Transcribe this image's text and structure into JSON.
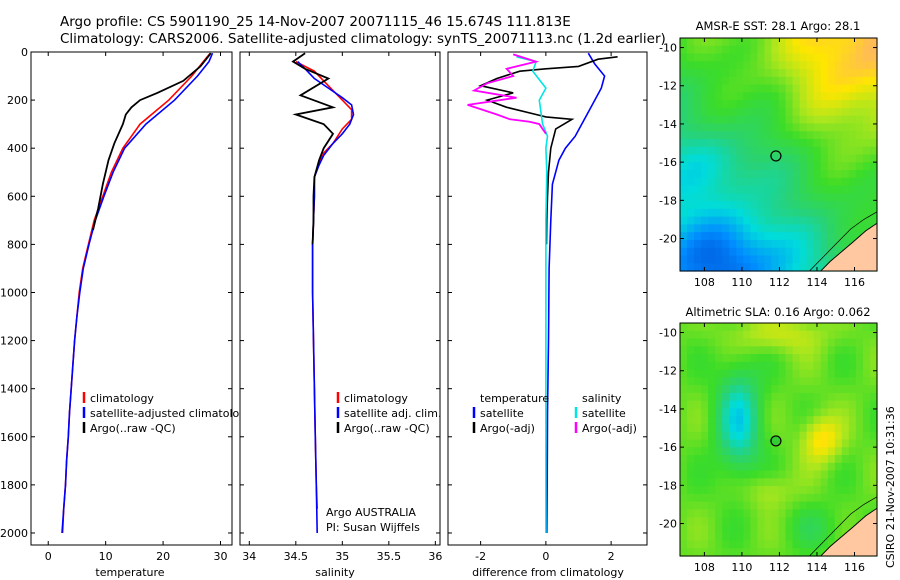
{
  "header": {
    "title_line1": "Argo profile: CS 5901190_25 14-Nov-2007 20071115_46 15.674S 111.813E",
    "title_line2": "Climatology: CARS2006. Satellite-adjusted climatology: synTS_20071113.nc (1.2d earlier)"
  },
  "credit": "CSIRO 21-Nov-2007 10:31:36",
  "colors": {
    "climatology": "#ff0000",
    "satellite": "#0000ff",
    "argo": "#000000",
    "salinity_satellite": "#00e5e5",
    "salinity_argo": "#ff00ff"
  },
  "chart_data": [
    {
      "id": "temperature",
      "type": "line",
      "xlabel": "temperature",
      "ylabel": "",
      "xlim": [
        -3,
        32
      ],
      "ylim": [
        2050,
        0
      ],
      "y_reversed": true,
      "xticks": [
        0,
        10,
        20,
        30
      ],
      "yticks": [
        0,
        200,
        400,
        600,
        800,
        1000,
        1200,
        1400,
        1600,
        1800,
        2000
      ],
      "legend": [
        {
          "label": "climatology",
          "color": "#ff0000"
        },
        {
          "label": "satellite-adjusted climatology",
          "color": "#0000ff"
        },
        {
          "label": "Argo(..raw -QC)",
          "color": "#000000"
        }
      ],
      "series": [
        {
          "name": "climatology",
          "color": "#ff0000",
          "points": [
            [
              28.2,
              5
            ],
            [
              27,
              40
            ],
            [
              25,
              100
            ],
            [
              21,
              200
            ],
            [
              16,
              300
            ],
            [
              13,
              400
            ],
            [
              11,
              500
            ],
            [
              9.5,
              600
            ],
            [
              8,
              700
            ],
            [
              7,
              800
            ],
            [
              6,
              900
            ],
            [
              5.4,
              1000
            ],
            [
              5,
              1100
            ],
            [
              4.6,
              1200
            ],
            [
              4.3,
              1300
            ],
            [
              4,
              1400
            ],
            [
              3.7,
              1500
            ],
            [
              3.5,
              1600
            ],
            [
              3.2,
              1700
            ],
            [
              3,
              1800
            ],
            [
              2.7,
              1900
            ],
            [
              2.5,
              2000
            ]
          ]
        },
        {
          "name": "satellite-adjusted climatology",
          "color": "#0000ff",
          "points": [
            [
              28.6,
              5
            ],
            [
              28,
              40
            ],
            [
              26,
              100
            ],
            [
              22,
              200
            ],
            [
              17,
              300
            ],
            [
              13.3,
              400
            ],
            [
              11.3,
              500
            ],
            [
              9.7,
              600
            ],
            [
              8.2,
              700
            ],
            [
              7.1,
              800
            ],
            [
              6.1,
              900
            ],
            [
              5.5,
              1000
            ],
            [
              5,
              1100
            ],
            [
              4.6,
              1200
            ],
            [
              4.3,
              1300
            ],
            [
              4,
              1400
            ],
            [
              3.7,
              1500
            ],
            [
              3.5,
              1600
            ],
            [
              3.2,
              1700
            ],
            [
              3,
              1800
            ],
            [
              2.7,
              1900
            ],
            [
              2.4,
              2000
            ]
          ]
        },
        {
          "name": "Argo(..raw -QC)",
          "color": "#000000",
          "points": [
            [
              28.3,
              5
            ],
            [
              28,
              15
            ],
            [
              26.5,
              60
            ],
            [
              23.5,
              120
            ],
            [
              19,
              170
            ],
            [
              16,
              200
            ],
            [
              14.5,
              230
            ],
            [
              13.5,
              260
            ],
            [
              13,
              300
            ],
            [
              11.5,
              380
            ],
            [
              10.5,
              450
            ],
            [
              9.5,
              550
            ],
            [
              8.7,
              650
            ],
            [
              7.8,
              740
            ]
          ]
        }
      ]
    },
    {
      "id": "salinity",
      "type": "line",
      "xlabel": "salinity",
      "ylabel": "",
      "xlim": [
        33.9,
        36.05
      ],
      "ylim": [
        2050,
        0
      ],
      "y_reversed": true,
      "xticks": [
        34,
        34.5,
        35,
        35.5,
        36
      ],
      "legend": [
        {
          "label": "climatology",
          "color": "#ff0000"
        },
        {
          "label": "satellite adj. clim.",
          "color": "#0000ff"
        },
        {
          "label": "Argo(..raw -QC)",
          "color": "#000000"
        }
      ],
      "annotations": [
        "Argo AUSTRALIA",
        "PI: Susan Wijffels"
      ],
      "series": [
        {
          "name": "climatology",
          "color": "#ff0000",
          "points": [
            [
              34.5,
              40
            ],
            [
              34.6,
              60
            ],
            [
              34.7,
              80
            ],
            [
              34.8,
              120
            ],
            [
              34.9,
              160
            ],
            [
              35,
              200
            ],
            [
              35.1,
              240
            ],
            [
              35.1,
              280
            ],
            [
              35,
              320
            ],
            [
              34.9,
              380
            ],
            [
              34.8,
              420
            ],
            [
              34.75,
              460
            ],
            [
              34.7,
              520
            ],
            [
              34.7,
              600
            ],
            [
              34.69,
              700
            ],
            [
              34.68,
              800
            ],
            [
              34.68,
              1000
            ],
            [
              34.69,
              1200
            ],
            [
              34.7,
              1400
            ],
            [
              34.71,
              1600
            ],
            [
              34.72,
              1800
            ],
            [
              34.73,
              1900
            ]
          ]
        },
        {
          "name": "satellite adj. clim.",
          "color": "#0000ff",
          "points": [
            [
              34.52,
              40
            ],
            [
              34.6,
              70
            ],
            [
              34.7,
              110
            ],
            [
              34.85,
              150
            ],
            [
              35,
              190
            ],
            [
              35.1,
              220
            ],
            [
              35.12,
              260
            ],
            [
              35.08,
              300
            ],
            [
              35,
              340
            ],
            [
              34.9,
              380
            ],
            [
              34.8,
              430
            ],
            [
              34.75,
              470
            ],
            [
              34.7,
              520
            ],
            [
              34.7,
              600
            ],
            [
              34.69,
              700
            ],
            [
              34.68,
              800
            ],
            [
              34.68,
              1000
            ],
            [
              34.69,
              1200
            ],
            [
              34.7,
              1400
            ],
            [
              34.71,
              1600
            ],
            [
              34.72,
              1800
            ],
            [
              34.73,
              2000
            ]
          ]
        },
        {
          "name": "Argo(..raw -QC)",
          "color": "#000000",
          "points": [
            [
              34.6,
              5
            ],
            [
              34.47,
              40
            ],
            [
              34.6,
              70
            ],
            [
              34.85,
              110
            ],
            [
              34.55,
              180
            ],
            [
              34.9,
              230
            ],
            [
              34.5,
              260
            ],
            [
              34.8,
              300
            ],
            [
              34.9,
              340
            ],
            [
              34.8,
              400
            ],
            [
              34.75,
              450
            ],
            [
              34.7,
              520
            ],
            [
              34.69,
              600
            ],
            [
              34.69,
              700
            ],
            [
              34.68,
              800
            ]
          ]
        }
      ]
    },
    {
      "id": "difference",
      "type": "line",
      "xlabel": "difference from climatology",
      "ylabel": "",
      "xlim": [
        -3,
        3.1
      ],
      "ylim": [
        2050,
        0
      ],
      "y_reversed": true,
      "xticks": [
        -2,
        0,
        2
      ],
      "legend_headers": [
        "temperature",
        "salinity"
      ],
      "legend": [
        {
          "label": "satellite",
          "color": "#0000ff"
        },
        {
          "label": "Argo(-adj)",
          "color": "#000000"
        },
        {
          "label": "satellite",
          "color": "#00e5e5"
        },
        {
          "label": "Argo(-adj)",
          "color": "#ff00ff"
        }
      ],
      "series": [
        {
          "name": "temperature satellite",
          "color": "#0000ff",
          "points": [
            [
              1.3,
              5
            ],
            [
              1.5,
              50
            ],
            [
              1.8,
              100
            ],
            [
              1.7,
              150
            ],
            [
              1.3,
              250
            ],
            [
              0.9,
              350
            ],
            [
              0.6,
              400
            ],
            [
              0.4,
              450
            ],
            [
              0.2,
              550
            ],
            [
              0.15,
              700
            ],
            [
              0.1,
              900
            ],
            [
              0.08,
              1200
            ],
            [
              0.05,
              1500
            ],
            [
              0.04,
              1800
            ],
            [
              0.03,
              2000
            ]
          ]
        },
        {
          "name": "temperature Argo(-adj)",
          "color": "#000000",
          "points": [
            [
              2.2,
              20
            ],
            [
              1.6,
              30
            ],
            [
              1,
              60
            ],
            [
              0,
              70
            ],
            [
              -0.8,
              80
            ],
            [
              -1.5,
              110
            ],
            [
              -2,
              140
            ],
            [
              -1,
              170
            ],
            [
              -1.8,
              200
            ],
            [
              -1.2,
              230
            ],
            [
              -0.3,
              260
            ],
            [
              0,
              270
            ],
            [
              0.8,
              280
            ],
            [
              0.3,
              320
            ],
            [
              0.15,
              400
            ],
            [
              0.08,
              500
            ],
            [
              0.05,
              600
            ],
            [
              0.03,
              700
            ],
            [
              0.02,
              800
            ]
          ]
        },
        {
          "name": "salinity satellite",
          "color": "#00e5e5",
          "points": [
            [
              -0.9,
              20
            ],
            [
              -0.3,
              40
            ],
            [
              -0.4,
              80
            ],
            [
              0,
              150
            ],
            [
              -0.2,
              200
            ],
            [
              -0.1,
              300
            ],
            [
              0.05,
              350
            ],
            [
              0,
              400
            ],
            [
              0.03,
              500
            ],
            [
              0,
              700
            ],
            [
              0,
              1000
            ],
            [
              0,
              1400
            ],
            [
              0,
              1800
            ],
            [
              0,
              2000
            ]
          ]
        },
        {
          "name": "salinity Argo(-adj)",
          "color": "#ff00ff",
          "points": [
            [
              -1,
              10
            ],
            [
              -0.3,
              40
            ],
            [
              -1.2,
              70
            ],
            [
              -1,
              100
            ],
            [
              -1.8,
              130
            ],
            [
              -2.2,
              160
            ],
            [
              -0.9,
              190
            ],
            [
              -2.4,
              220
            ],
            [
              -1.5,
              260
            ],
            [
              -1.1,
              280
            ],
            [
              -0.5,
              290
            ],
            [
              -0.2,
              300
            ],
            [
              -0.1,
              320
            ],
            [
              0,
              340
            ]
          ]
        }
      ]
    },
    {
      "id": "sst-map",
      "type": "heatmap",
      "title": "AMSR-E SST: 28.1 Argo: 28.1",
      "xlim": [
        106.7,
        117.2
      ],
      "ylim": [
        -21.7,
        -9.5
      ],
      "xticks": [
        108,
        110,
        112,
        114,
        116
      ],
      "yticks": [
        -10,
        -12,
        -14,
        -16,
        -18,
        -20
      ],
      "marker": {
        "lon": 111.813,
        "lat": -15.674,
        "fill": "none"
      }
    },
    {
      "id": "sla-map",
      "type": "heatmap",
      "title": "Altimetric SLA: 0.16 Argo: 0.062",
      "xlim": [
        106.7,
        117.2
      ],
      "ylim": [
        -21.7,
        -9.5
      ],
      "xticks": [
        108,
        110,
        112,
        114,
        116
      ],
      "yticks": [
        -10,
        -12,
        -14,
        -16,
        -18,
        -20
      ],
      "marker": {
        "lon": 111.813,
        "lat": -15.674,
        "fill": "#33cc33"
      }
    }
  ]
}
